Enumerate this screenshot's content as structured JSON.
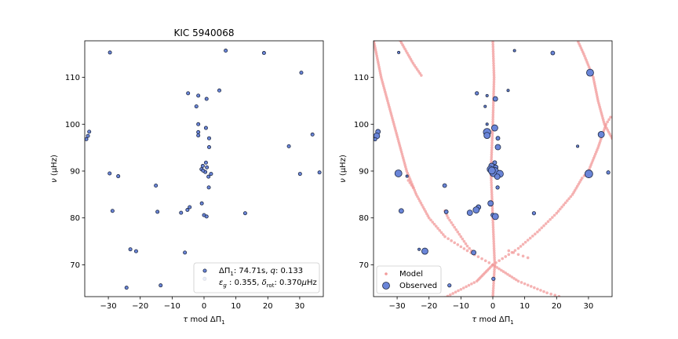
{
  "chart_data": [
    {
      "type": "scatter",
      "title": "KIC 5940068",
      "xlabel": "τ mod ΔΠ₁",
      "ylabel": "ν (μHz)",
      "xlim": [
        -37.4,
        37.4
      ],
      "ylim": [
        63.2,
        117.8
      ],
      "xticks": [
        -30,
        -20,
        -10,
        0,
        10,
        20,
        30
      ],
      "xtick_labels": [
        "−30",
        "−20",
        "−10",
        "0",
        "10",
        "20",
        "30"
      ],
      "yticks": [
        70,
        80,
        90,
        100,
        110
      ],
      "ytick_labels": [
        "70",
        "80",
        "90",
        "100",
        "110"
      ],
      "grid": false,
      "legend_position": "lower-right",
      "legend_text": [
        "ΔΠ₁: 74.71s,  q:  0.133",
        "εg : 0.355,  δrot: 0.370μHz"
      ],
      "marker_color": "#6a85d8",
      "series": [
        {
          "points": [
            [
              -29.5,
              115.3
            ],
            [
              6.8,
              115.7
            ],
            [
              18.8,
              115.2
            ],
            [
              30.5,
              111.0
            ],
            [
              4.8,
              107.2
            ],
            [
              -5.0,
              106.6
            ],
            [
              -1.8,
              106.1
            ],
            [
              0.8,
              105.4
            ],
            [
              -2.4,
              103.8
            ],
            [
              -36.0,
              98.4
            ],
            [
              -36.4,
              97.5
            ],
            [
              -36.9,
              96.8
            ],
            [
              -1.8,
              100.0
            ],
            [
              0.6,
              99.2
            ],
            [
              -1.8,
              98.3
            ],
            [
              -1.8,
              97.6
            ],
            [
              1.6,
              97.0
            ],
            [
              1.6,
              95.1
            ],
            [
              26.6,
              95.3
            ],
            [
              34.0,
              97.8
            ],
            [
              0.6,
              91.8
            ],
            [
              -0.4,
              91.1
            ],
            [
              0.9,
              90.8
            ],
            [
              -0.8,
              90.4
            ],
            [
              0.4,
              89.8
            ],
            [
              -0.3,
              90.1
            ],
            [
              2.2,
              89.4
            ],
            [
              1.4,
              88.8
            ],
            [
              -29.6,
              89.5
            ],
            [
              -26.9,
              88.9
            ],
            [
              30.1,
              89.4
            ],
            [
              36.2,
              89.7
            ],
            [
              -15.1,
              86.9
            ],
            [
              1.5,
              86.5
            ],
            [
              -0.7,
              83.1
            ],
            [
              -4.5,
              82.3
            ],
            [
              -5.2,
              81.7
            ],
            [
              -7.2,
              81.1
            ],
            [
              -14.6,
              81.3
            ],
            [
              -28.7,
              81.5
            ],
            [
              0.0,
              80.6
            ],
            [
              0.8,
              80.3
            ],
            [
              12.9,
              81.0
            ],
            [
              -23.1,
              73.3
            ],
            [
              -21.3,
              72.9
            ],
            [
              -6.0,
              72.6
            ],
            [
              0.2,
              67.0
            ],
            [
              -13.6,
              65.6
            ],
            [
              -24.3,
              65.1
            ]
          ]
        }
      ]
    },
    {
      "type": "scatter",
      "title": "",
      "xlabel": "τ mod ΔΠ₁",
      "ylabel": "ν (μHz)",
      "xlim": [
        -37.4,
        37.4
      ],
      "ylim": [
        63.2,
        117.8
      ],
      "xticks": [
        -30,
        -20,
        -10,
        0,
        10,
        20,
        30
      ],
      "xtick_labels": [
        "−30",
        "−20",
        "−10",
        "0",
        "10",
        "20",
        "30"
      ],
      "yticks": [
        70,
        80,
        90,
        100,
        110
      ],
      "ytick_labels": [
        "70",
        "80",
        "90",
        "100",
        "110"
      ],
      "grid": false,
      "legend_position": "lower-left",
      "series": [
        {
          "name": "Model",
          "color": "#f29a9a",
          "traces": [
            {
              "curve": [
                [
                  0.0,
                  63.0
                ],
                [
                  0.6,
                  70.0
                ],
                [
                  0.0,
                  80.0
                ],
                [
                  -0.6,
                  90.0
                ],
                [
                  0.0,
                  100.0
                ],
                [
                  0.4,
                  110.0
                ],
                [
                  0.0,
                  118.0
                ]
              ],
              "step": 0.5
            },
            {
              "curve": [
                [
                  -15.0,
                  63.0
                ],
                [
                  -5.0,
                  66.5
                ],
                [
                  0.0,
                  70.0
                ]
              ],
              "step": 0.28
            },
            {
              "curve": [
                [
                  0.0,
                  70.0
                ],
                [
                  -8.0,
                  73.0
                ],
                [
                  -15.0,
                  76.0
                ],
                [
                  -20.0,
                  80.0
                ],
                [
                  -24.0,
                  85.0
                ],
                [
                  -27.0,
                  90.0
                ],
                [
                  -29.0,
                  95.0
                ],
                [
                  -31.0,
                  100.0
                ],
                [
                  -33.0,
                  105.0
                ],
                [
                  -35.0,
                  110.0
                ],
                [
                  -36.5,
                  115.0
                ],
                [
                  -37.4,
                  118.0
                ]
              ],
              "step": 0.45
            },
            {
              "curve": [
                [
                  0.0,
                  70.0
                ],
                [
                  8.0,
                  66.5
                ],
                [
                  17.0,
                  64.0
                ],
                [
                  22.0,
                  63.0
                ]
              ],
              "step": 0.28
            },
            {
              "curve": [
                [
                  0.0,
                  70.0
                ],
                [
                  8.0,
                  73.5
                ],
                [
                  14.0,
                  77.0
                ],
                [
                  20.0,
                  81.0
                ],
                [
                  25.0,
                  85.0
                ],
                [
                  28.0,
                  88.5
                ],
                [
                  30.0,
                  90.0
                ],
                [
                  33.0,
                  95.0
                ],
                [
                  35.5,
                  100.0
                ],
                [
                  37.4,
                  102.0
                ]
              ],
              "step": 0.45
            },
            {
              "curve": [
                [
                  37.4,
                  97.0
                ],
                [
                  35.0,
                  100.0
                ],
                [
                  33.0,
                  105.0
                ],
                [
                  31.5,
                  110.0
                ],
                [
                  28.5,
                  115.0
                ],
                [
                  26.5,
                  118.0
                ]
              ],
              "step": 0.45
            },
            {
              "curve": [
                [
                  -29.0,
                  117.8
                ],
                [
                  -25.0,
                  113.0
                ],
                [
                  -22.0,
                  110.0
                ]
              ],
              "step": 0.45
            },
            {
              "curve": [
                [
                  -15.0,
                  81.5
                ],
                [
                  -14.0,
                  80.0
                ],
                [
                  -12.0,
                  78.0
                ],
                [
                  -10.0,
                  76.0
                ],
                [
                  -8.0,
                  74.0
                ],
                [
                  -6.0,
                  72.5
                ]
              ],
              "step": 0.45
            },
            {
              "curve": [
                [
                  5.0,
                  73.0
                ],
                [
                  8.0,
                  72.2
                ],
                [
                  11.0,
                  71.5
                ],
                [
                  14.0,
                  71.0
                ]
              ],
              "step": 0.45
            },
            {
              "curve": [
                [
                  -26.5,
                  88.0
                ],
                [
                  -24.5,
                  86.0
                ]
              ],
              "step": 0.45
            }
          ]
        },
        {
          "name": "Observed",
          "color": "#6a85d8",
          "points": [
            [
              -29.5,
              115.3,
              1.6
            ],
            [
              6.8,
              115.7,
              1.6
            ],
            [
              18.8,
              115.2,
              2.5
            ],
            [
              30.5,
              111.0,
              4.5
            ],
            [
              4.8,
              107.2,
              1.6
            ],
            [
              -5.0,
              106.6,
              2.2
            ],
            [
              -1.8,
              106.1,
              1.6
            ],
            [
              0.8,
              105.4,
              3.0
            ],
            [
              -2.4,
              103.8,
              1.6
            ],
            [
              -36.0,
              98.4,
              3.0
            ],
            [
              -36.4,
              97.5,
              3.8
            ],
            [
              -36.9,
              96.8,
              2.2
            ],
            [
              -1.8,
              100.0,
              1.6
            ],
            [
              0.6,
              99.2,
              4.0
            ],
            [
              -1.8,
              98.3,
              4.8
            ],
            [
              -1.8,
              97.6,
              4.0
            ],
            [
              1.6,
              97.0,
              2.5
            ],
            [
              1.6,
              95.1,
              3.5
            ],
            [
              26.6,
              95.3,
              1.6
            ],
            [
              34.0,
              97.8,
              4.0
            ],
            [
              0.6,
              91.8,
              2.5
            ],
            [
              -0.4,
              91.1,
              3.5
            ],
            [
              0.9,
              90.8,
              3.0
            ],
            [
              -0.8,
              90.4,
              4.0
            ],
            [
              0.4,
              89.8,
              6.0
            ],
            [
              -0.3,
              90.1,
              4.5
            ],
            [
              2.2,
              89.4,
              4.5
            ],
            [
              1.4,
              88.8,
              3.5
            ],
            [
              -29.6,
              89.5,
              4.5
            ],
            [
              -26.9,
              88.9,
              1.6
            ],
            [
              30.1,
              89.4,
              5.0
            ],
            [
              36.2,
              89.7,
              2.2
            ],
            [
              -15.1,
              86.9,
              2.5
            ],
            [
              1.5,
              86.5,
              2.2
            ],
            [
              -0.7,
              83.1,
              3.5
            ],
            [
              -4.5,
              82.3,
              3.0
            ],
            [
              -5.2,
              81.7,
              4.0
            ],
            [
              -7.2,
              81.1,
              3.5
            ],
            [
              -14.6,
              81.3,
              2.5
            ],
            [
              -28.7,
              81.5,
              3.0
            ],
            [
              0.0,
              80.6,
              2.5
            ],
            [
              0.8,
              80.3,
              4.0
            ],
            [
              12.9,
              81.0,
              2.2
            ],
            [
              -23.1,
              73.3,
              1.6
            ],
            [
              -21.3,
              72.9,
              4.0
            ],
            [
              -6.0,
              72.6,
              3.0
            ],
            [
              0.2,
              67.0,
              2.2
            ],
            [
              -13.6,
              65.6,
              2.2
            ]
          ]
        }
      ]
    }
  ]
}
